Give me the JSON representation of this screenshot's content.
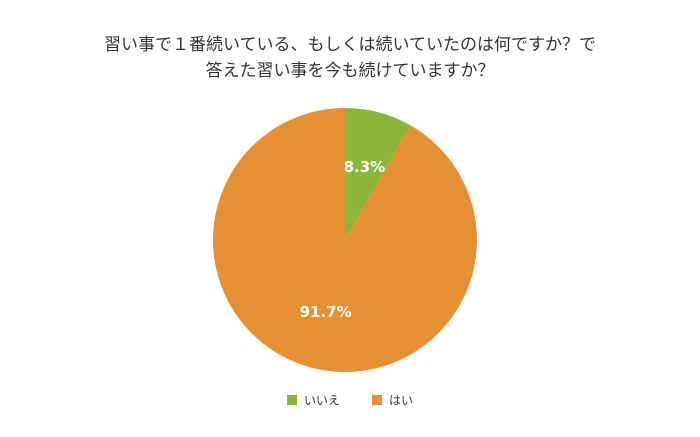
{
  "chart_data": {
    "type": "pie",
    "title": [
      "習い事で１番続いている、もしくは続いていたのは何ですか？で",
      "答えた習い事を今も続けていますか？"
    ],
    "categories": [
      "いいえ",
      "はい"
    ],
    "values": [
      8.3,
      91.7
    ],
    "value_labels": [
      "8.3%",
      "91.7%"
    ],
    "colors": [
      "#8bb63a",
      "#e69034"
    ],
    "legend": "bottom"
  }
}
